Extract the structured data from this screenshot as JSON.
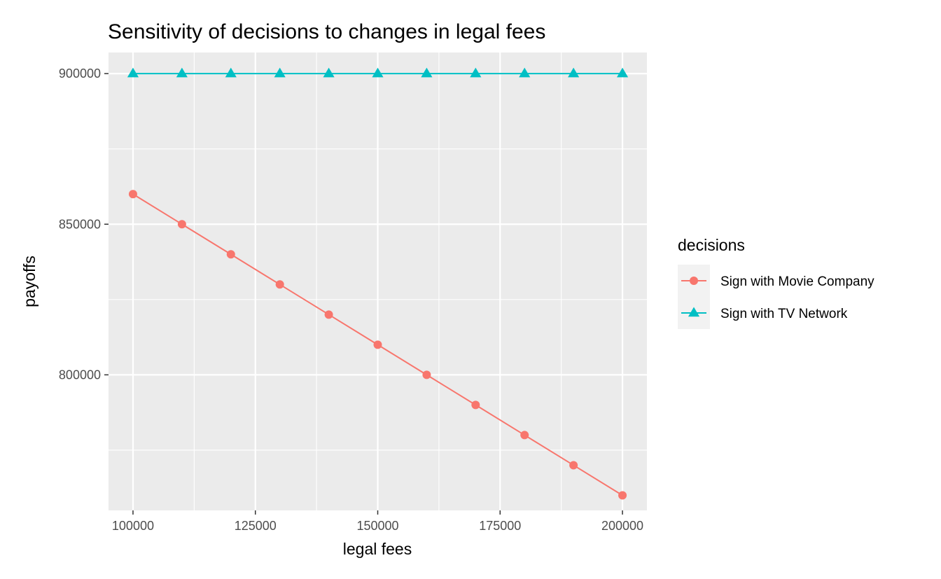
{
  "chart_data": {
    "type": "line",
    "title": "Sensitivity of decisions to changes in legal fees",
    "xlabel": "legal fees",
    "ylabel": "payoffs",
    "x": [
      100000,
      110000,
      120000,
      130000,
      140000,
      150000,
      160000,
      170000,
      180000,
      190000,
      200000
    ],
    "xlim": [
      95000,
      205000
    ],
    "ylim": [
      755000,
      907000
    ],
    "x_ticks": [
      100000,
      125000,
      150000,
      175000,
      200000
    ],
    "x_tick_labels": [
      "100000",
      "125000",
      "150000",
      "175000",
      "200000"
    ],
    "x_minor_ticks": [
      112500,
      137500,
      162500,
      187500
    ],
    "y_ticks": [
      800000,
      850000,
      900000
    ],
    "y_tick_labels": [
      "800000",
      "850000",
      "900000"
    ],
    "y_minor_ticks": [
      775000,
      825000,
      875000
    ],
    "grid": true,
    "legend": {
      "title": "decisions",
      "position": "right"
    },
    "series": [
      {
        "name": "Sign with Movie Company",
        "color": "#F8766D",
        "marker": "circle",
        "values": [
          860000,
          850000,
          840000,
          830000,
          820000,
          810000,
          800000,
          790000,
          780000,
          770000,
          760000
        ]
      },
      {
        "name": "Sign with TV Network",
        "color": "#00BFC4",
        "marker": "triangle",
        "values": [
          900000,
          900000,
          900000,
          900000,
          900000,
          900000,
          900000,
          900000,
          900000,
          900000,
          900000
        ]
      }
    ],
    "panel_background": "#EBEBEB",
    "grid_color": "#FFFFFF"
  }
}
